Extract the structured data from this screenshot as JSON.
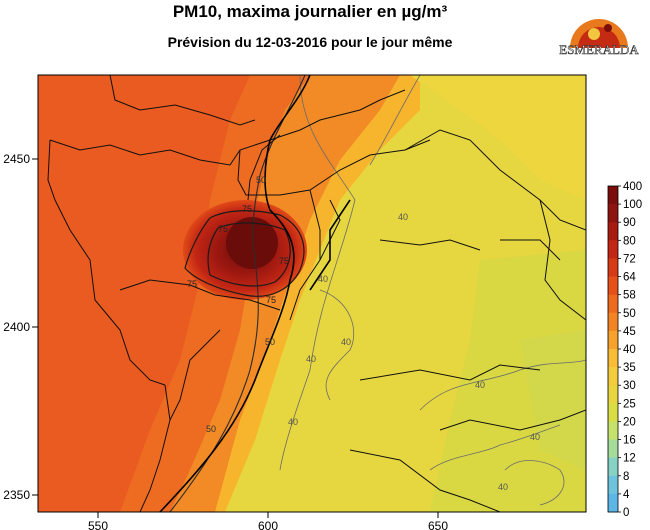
{
  "title": "PM10, maxima journalier en µg/m³",
  "subtitle": "Prévision du 12-03-2016 pour le jour même",
  "logo_text": "ESMERALDA",
  "x_ticks": [
    "550",
    "600",
    "650"
  ],
  "y_ticks": [
    "2450",
    "2400",
    "2350"
  ],
  "colorbar_labels": [
    "400",
    "100",
    "90",
    "80",
    "72",
    "64",
    "58",
    "50",
    "45",
    "40",
    "35",
    "30",
    "25",
    "20",
    "16",
    "12",
    "8",
    "4",
    "0"
  ],
  "colorbar_colors": [
    "#7a0e0c",
    "#8e1410",
    "#a81a12",
    "#c22614",
    "#d63b16",
    "#e65019",
    "#ee6a1d",
    "#f28424",
    "#f6a22c",
    "#f8bc36",
    "#f2cc3c",
    "#e8d53f",
    "#d8de44",
    "#c4e26c",
    "#a4dc9a",
    "#86d2c4",
    "#6ec4dc",
    "#5cb6e6"
  ],
  "contour_labels": [
    {
      "text": "40",
      "color": "#555555"
    },
    {
      "text": "40",
      "color": "#555555"
    },
    {
      "text": "40",
      "color": "#555555"
    },
    {
      "text": "40",
      "color": "#555555"
    },
    {
      "text": "40",
      "color": "#555555"
    },
    {
      "text": "40",
      "color": "#555555"
    },
    {
      "text": "40",
      "color": "#555555"
    },
    {
      "text": "40",
      "color": "#555555"
    },
    {
      "text": "50",
      "color": "#333333"
    },
    {
      "text": "50",
      "color": "#333333"
    },
    {
      "text": "50",
      "color": "#333333"
    },
    {
      "text": "75",
      "color": "#222222"
    },
    {
      "text": "75",
      "color": "#222222"
    },
    {
      "text": "75",
      "color": "#222222"
    },
    {
      "text": "75",
      "color": "#222222"
    },
    {
      "text": "75",
      "color": "#222222"
    }
  ]
}
